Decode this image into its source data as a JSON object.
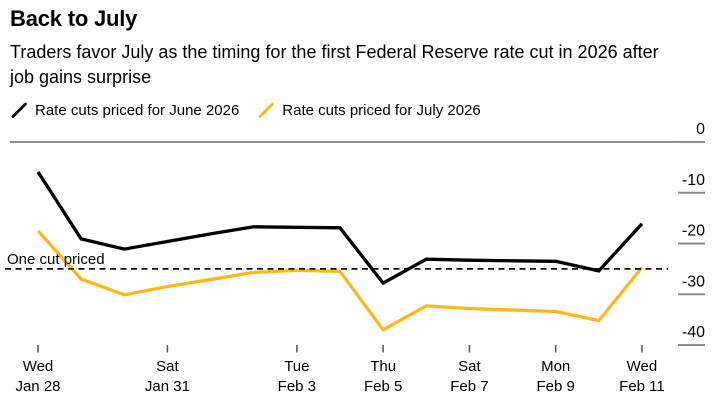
{
  "header": {
    "title": "Back to July",
    "subtitle": "Traders favor July as the timing for the first Federal Reserve rate cut in 2026 after job gains surprise"
  },
  "legend": {
    "items": [
      {
        "label": "Rate cuts priced for June 2026",
        "color": "#000000",
        "marker": "slash-icon"
      },
      {
        "label": "Rate cuts priced for July 2026",
        "color": "#fcb81a",
        "marker": "slash-icon"
      }
    ]
  },
  "colors": {
    "june_line": "#000000",
    "july_line": "#fcb81a",
    "zero_line": "#909090",
    "axis_tick": "#8c8c8c",
    "x_tick": "#555555",
    "reference_line": "#111111",
    "background": "#ffffff",
    "text": "#000000"
  },
  "chart_data": {
    "type": "line",
    "x": [
      "Jan 28",
      "Jan 29",
      "Jan 30",
      "Jan 31",
      "Feb 1",
      "Feb 2",
      "Feb 3",
      "Feb 4",
      "Feb 5",
      "Feb 6",
      "Feb 7",
      "Feb 8",
      "Feb 9",
      "Feb 10",
      "Feb 11"
    ],
    "series": [
      {
        "name": "Rate cuts priced for June 2026",
        "color": "#000000",
        "values": [
          -5.9,
          -19.1,
          -21.1,
          -19.6,
          -18.1,
          -16.7,
          -16.8,
          -16.9,
          -27.8,
          -23.1,
          -23.3,
          -23.4,
          -23.5,
          -25.4,
          -16.1
        ]
      },
      {
        "name": "Rate cuts priced for July 2026",
        "color": "#fcb81a",
        "values": [
          -17.5,
          -27.0,
          -30.1,
          -28.5,
          -27.1,
          -25.7,
          -25.3,
          -25.5,
          -37.0,
          -32.3,
          -32.8,
          -33.1,
          -33.4,
          -35.2,
          -24.7
        ]
      }
    ],
    "x_tick_labels": [
      {
        "top": "Wed",
        "bottom": "Jan 28",
        "index": 0
      },
      {
        "top": "Sat",
        "bottom": "Jan 31",
        "index": 3
      },
      {
        "top": "Tue",
        "bottom": "Feb 3",
        "index": 6
      },
      {
        "top": "Thu",
        "bottom": "Feb 5",
        "index": 8
      },
      {
        "top": "Sat",
        "bottom": "Feb 7",
        "index": 10
      },
      {
        "top": "Mon",
        "bottom": "Feb 9",
        "index": 12
      },
      {
        "top": "Wed",
        "bottom": "Feb 11",
        "index": 14
      }
    ],
    "y_ticks": [
      0,
      -10,
      -20,
      -30,
      -40
    ],
    "ylim": [
      -42,
      0
    ],
    "reference_line": {
      "value": -25,
      "label": "One cut priced",
      "style": "dashed"
    },
    "grid": "solid line at 0 only, short right-side tick marks",
    "legend_position": "top",
    "y_axis_side": "right",
    "title": "Back to July",
    "xlabel": "",
    "ylabel": ""
  }
}
